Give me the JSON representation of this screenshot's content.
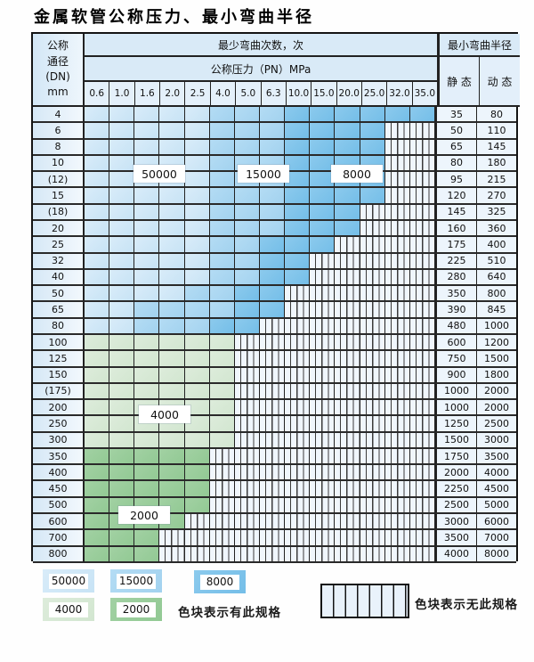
{
  "title": "金属软管公称压力、最小弯曲半径",
  "header": {
    "dn_label_lines": [
      "公称",
      "通径",
      "(DN)",
      "mm"
    ],
    "bend_cycles_label": "最少弯曲次数，次",
    "pressure_label": "公称压力（PN）MPa",
    "pressure_columns": [
      "0.6",
      "1.0",
      "1.6",
      "2.0",
      "2.5",
      "4.0",
      "5.0",
      "6.3",
      "10.0",
      "15.0",
      "20.0",
      "25.0",
      "32.0",
      "35.0"
    ],
    "radius_label": "最小弯曲半径",
    "static_label": "静 态",
    "dynamic_label": "动 态"
  },
  "colors": {
    "blue_50000": "#cde5f7",
    "blue_15000": "#a8d5f1",
    "blue_8000": "#7fc3ea",
    "green_4000": "#d8e9d6",
    "green_2000": "#98cc9a",
    "hatch_bg": "#f0f6fc",
    "grid_line": "#222222"
  },
  "chart_data": {
    "type": "table",
    "title": "金属软管公称压力、最小弯曲半径",
    "cell_legend": {
      "B1": 50000,
      "B2": 15000,
      "B3": 8000,
      "G1": 4000,
      "G2": 2000,
      "N": "无此规格"
    },
    "pressure_columns_MPa": [
      0.6,
      1.0,
      1.6,
      2.0,
      2.5,
      4.0,
      5.0,
      6.3,
      10.0,
      15.0,
      20.0,
      25.0,
      32.0,
      35.0
    ],
    "rows": [
      {
        "dn": "4",
        "cells": [
          "B1",
          "B1",
          "B1",
          "B1",
          "B1",
          "B2",
          "B2",
          "B2",
          "B3",
          "B3",
          "B3",
          "B3",
          "B3",
          "B3"
        ],
        "static": "35",
        "dynamic": "80"
      },
      {
        "dn": "6",
        "cells": [
          "B1",
          "B1",
          "B1",
          "B1",
          "B1",
          "B2",
          "B2",
          "B2",
          "B3",
          "B3",
          "B3",
          "B3",
          "N",
          "N"
        ],
        "static": "50",
        "dynamic": "110"
      },
      {
        "dn": "8",
        "cells": [
          "B1",
          "B1",
          "B1",
          "B1",
          "B1",
          "B2",
          "B2",
          "B2",
          "B3",
          "B3",
          "B3",
          "B3",
          "N",
          "N"
        ],
        "static": "65",
        "dynamic": "145"
      },
      {
        "dn": "10",
        "cells": [
          "B1",
          "B1",
          "B1",
          "B1",
          "B1",
          "B2",
          "B2",
          "B2",
          "B3",
          "B3",
          "B3",
          "B3",
          "N",
          "N"
        ],
        "static": "80",
        "dynamic": "180"
      },
      {
        "dn": "(12)",
        "cells": [
          "B1",
          "B1",
          "B1",
          "B1",
          "B1",
          "B2",
          "B2",
          "B2",
          "B3",
          "B3",
          "B3",
          "B3",
          "N",
          "N"
        ],
        "static": "95",
        "dynamic": "215"
      },
      {
        "dn": "15",
        "cells": [
          "B1",
          "B1",
          "B1",
          "B1",
          "B1",
          "B2",
          "B2",
          "B2",
          "B3",
          "B3",
          "B3",
          "B3",
          "N",
          "N"
        ],
        "static": "120",
        "dynamic": "270"
      },
      {
        "dn": "(18)",
        "cells": [
          "B1",
          "B1",
          "B1",
          "B1",
          "B1",
          "B2",
          "B2",
          "B2",
          "B3",
          "B3",
          "B3",
          "N",
          "N",
          "N"
        ],
        "static": "145",
        "dynamic": "325"
      },
      {
        "dn": "20",
        "cells": [
          "B1",
          "B1",
          "B1",
          "B1",
          "B1",
          "B2",
          "B2",
          "B2",
          "B3",
          "B3",
          "B3",
          "N",
          "N",
          "N"
        ],
        "static": "160",
        "dynamic": "360"
      },
      {
        "dn": "25",
        "cells": [
          "B1",
          "B1",
          "B1",
          "B1",
          "B1",
          "B2",
          "B2",
          "B3",
          "B3",
          "B3",
          "N",
          "N",
          "N",
          "N"
        ],
        "static": "175",
        "dynamic": "400"
      },
      {
        "dn": "32",
        "cells": [
          "B1",
          "B1",
          "B1",
          "B1",
          "B1",
          "B2",
          "B2",
          "B3",
          "B3",
          "N",
          "N",
          "N",
          "N",
          "N"
        ],
        "static": "225",
        "dynamic": "510"
      },
      {
        "dn": "40",
        "cells": [
          "B1",
          "B1",
          "B1",
          "B1",
          "B1",
          "B2",
          "B2",
          "B3",
          "B3",
          "N",
          "N",
          "N",
          "N",
          "N"
        ],
        "static": "280",
        "dynamic": "640"
      },
      {
        "dn": "50",
        "cells": [
          "B1",
          "B1",
          "B1",
          "B1",
          "B2",
          "B2",
          "B3",
          "B3",
          "N",
          "N",
          "N",
          "N",
          "N",
          "N"
        ],
        "static": "350",
        "dynamic": "800"
      },
      {
        "dn": "65",
        "cells": [
          "B1",
          "B1",
          "B2",
          "B2",
          "B2",
          "B2",
          "B3",
          "B3",
          "N",
          "N",
          "N",
          "N",
          "N",
          "N"
        ],
        "static": "390",
        "dynamic": "845"
      },
      {
        "dn": "80",
        "cells": [
          "B1",
          "B1",
          "B2",
          "B2",
          "B2",
          "B3",
          "B3",
          "N",
          "N",
          "N",
          "N",
          "N",
          "N",
          "N"
        ],
        "static": "480",
        "dynamic": "1000"
      },
      {
        "dn": "100",
        "cells": [
          "G1",
          "G1",
          "G1",
          "G1",
          "G1",
          "G1",
          "N",
          "N",
          "N",
          "N",
          "N",
          "N",
          "N",
          "N"
        ],
        "static": "600",
        "dynamic": "1200"
      },
      {
        "dn": "125",
        "cells": [
          "G1",
          "G1",
          "G1",
          "G1",
          "G1",
          "G1",
          "N",
          "N",
          "N",
          "N",
          "N",
          "N",
          "N",
          "N"
        ],
        "static": "750",
        "dynamic": "1500"
      },
      {
        "dn": "150",
        "cells": [
          "G1",
          "G1",
          "G1",
          "G1",
          "G1",
          "G1",
          "N",
          "N",
          "N",
          "N",
          "N",
          "N",
          "N",
          "N"
        ],
        "static": "900",
        "dynamic": "1800"
      },
      {
        "dn": "(175)",
        "cells": [
          "G1",
          "G1",
          "G1",
          "G1",
          "G1",
          "G1",
          "N",
          "N",
          "N",
          "N",
          "N",
          "N",
          "N",
          "N"
        ],
        "static": "1000",
        "dynamic": "2000"
      },
      {
        "dn": "200",
        "cells": [
          "G1",
          "G1",
          "G1",
          "G1",
          "G1",
          "G1",
          "N",
          "N",
          "N",
          "N",
          "N",
          "N",
          "N",
          "N"
        ],
        "static": "1000",
        "dynamic": "2000"
      },
      {
        "dn": "250",
        "cells": [
          "G1",
          "G1",
          "G1",
          "G1",
          "G1",
          "G1",
          "N",
          "N",
          "N",
          "N",
          "N",
          "N",
          "N",
          "N"
        ],
        "static": "1250",
        "dynamic": "2500"
      },
      {
        "dn": "300",
        "cells": [
          "G1",
          "G1",
          "G1",
          "G1",
          "G1",
          "G1",
          "N",
          "N",
          "N",
          "N",
          "N",
          "N",
          "N",
          "N"
        ],
        "static": "1500",
        "dynamic": "3000"
      },
      {
        "dn": "350",
        "cells": [
          "G2",
          "G2",
          "G2",
          "G2",
          "G2",
          "N",
          "N",
          "N",
          "N",
          "N",
          "N",
          "N",
          "N",
          "N"
        ],
        "static": "1750",
        "dynamic": "3500"
      },
      {
        "dn": "400",
        "cells": [
          "G2",
          "G2",
          "G2",
          "G2",
          "G2",
          "N",
          "N",
          "N",
          "N",
          "N",
          "N",
          "N",
          "N",
          "N"
        ],
        "static": "2000",
        "dynamic": "4000"
      },
      {
        "dn": "450",
        "cells": [
          "G2",
          "G2",
          "G2",
          "G2",
          "G2",
          "N",
          "N",
          "N",
          "N",
          "N",
          "N",
          "N",
          "N",
          "N"
        ],
        "static": "2250",
        "dynamic": "4500"
      },
      {
        "dn": "500",
        "cells": [
          "G2",
          "G2",
          "G2",
          "G2",
          "G2",
          "N",
          "N",
          "N",
          "N",
          "N",
          "N",
          "N",
          "N",
          "N"
        ],
        "static": "2500",
        "dynamic": "5000"
      },
      {
        "dn": "600",
        "cells": [
          "G2",
          "G2",
          "G2",
          "G2",
          "N",
          "N",
          "N",
          "N",
          "N",
          "N",
          "N",
          "N",
          "N",
          "N"
        ],
        "static": "3000",
        "dynamic": "6000"
      },
      {
        "dn": "700",
        "cells": [
          "G2",
          "G2",
          "G2",
          "N",
          "N",
          "N",
          "N",
          "N",
          "N",
          "N",
          "N",
          "N",
          "N",
          "N"
        ],
        "static": "3500",
        "dynamic": "7000"
      },
      {
        "dn": "800",
        "cells": [
          "G2",
          "G2",
          "G2",
          "N",
          "N",
          "N",
          "N",
          "N",
          "N",
          "N",
          "N",
          "N",
          "N",
          "N"
        ],
        "static": "4000",
        "dynamic": "8000"
      }
    ]
  },
  "overlays": [
    {
      "text": "50000"
    },
    {
      "text": "15000"
    },
    {
      "text": "8000"
    },
    {
      "text": "4000"
    },
    {
      "text": "2000"
    }
  ],
  "legend": {
    "items": [
      {
        "label": "50000",
        "class": "B1"
      },
      {
        "label": "15000",
        "class": "B2"
      },
      {
        "label": "8000",
        "class": "B3"
      },
      {
        "label": "4000",
        "class": "G1"
      },
      {
        "label": "2000",
        "class": "G2"
      }
    ],
    "has_spec_text": "色块表示有此规格",
    "no_spec_text": "色块表示无此规格"
  }
}
